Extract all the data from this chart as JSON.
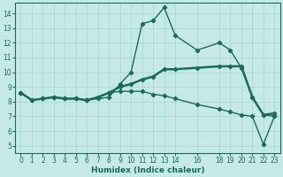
{
  "xlabel": "Humidex (Indice chaleur)",
  "bg_color": "#c5e8e8",
  "grid_color": "#a8d4d4",
  "line_color": "#1a6b5a",
  "xlim": [
    -0.5,
    23.5
  ],
  "ylim": [
    4.5,
    14.7
  ],
  "xticks": [
    0,
    1,
    2,
    3,
    4,
    5,
    6,
    7,
    8,
    9,
    10,
    11,
    12,
    13,
    14,
    16,
    18,
    19,
    20,
    21,
    22,
    23
  ],
  "yticks": [
    5,
    6,
    7,
    8,
    9,
    10,
    11,
    12,
    13,
    14
  ],
  "line1_x": [
    0,
    1,
    2,
    3,
    4,
    5,
    6,
    7,
    8,
    9,
    10,
    11,
    12,
    13,
    14,
    16,
    18,
    19,
    20,
    21,
    22,
    23
  ],
  "line1_y": [
    8.6,
    8.1,
    8.2,
    8.3,
    8.2,
    8.2,
    8.1,
    8.2,
    8.3,
    9.2,
    10.0,
    13.3,
    13.5,
    14.4,
    12.5,
    11.5,
    12.0,
    11.5,
    10.3,
    8.3,
    7.1,
    7.0
  ],
  "line2_x": [
    0,
    1,
    2,
    3,
    4,
    5,
    6,
    7,
    8,
    9,
    10,
    11,
    12,
    13,
    14,
    16,
    18,
    19,
    20,
    21,
    22,
    23
  ],
  "line2_y": [
    8.6,
    8.1,
    8.2,
    8.3,
    8.2,
    8.2,
    8.1,
    8.3,
    8.6,
    9.0,
    9.2,
    9.5,
    9.7,
    10.2,
    10.2,
    10.3,
    10.4,
    10.4,
    10.4,
    8.3,
    7.1,
    7.2
  ],
  "line3_x": [
    0,
    1,
    2,
    3,
    4,
    5,
    6,
    7,
    8,
    9,
    10,
    11,
    12,
    13,
    14,
    16,
    18,
    19,
    20,
    21,
    22,
    23
  ],
  "line3_y": [
    8.6,
    8.1,
    8.2,
    8.3,
    8.2,
    8.2,
    8.1,
    8.3,
    8.6,
    8.7,
    8.7,
    8.7,
    8.5,
    8.4,
    8.2,
    7.8,
    7.5,
    7.3,
    7.1,
    7.0,
    5.1,
    7.0
  ],
  "line2_lw": 1.8,
  "line1_lw": 1.0,
  "line3_lw": 1.0
}
